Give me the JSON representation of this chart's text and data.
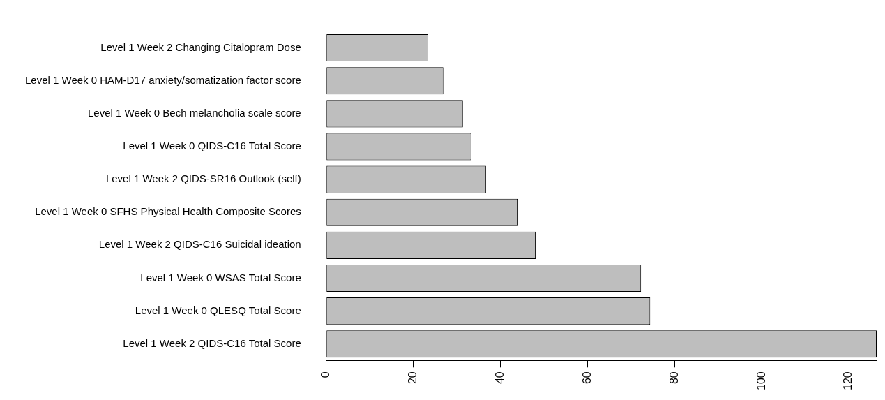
{
  "chart_data": {
    "type": "bar",
    "orientation": "horizontal",
    "categories": [
      "Level 1 Week 2 Changing Citalopram Dose",
      "Level 1 Week 0 HAM-D17 anxiety/somatization factor score",
      "Level 1 Week 0 Bech melancholia scale score",
      "Level 1 Week 0 QIDS-C16 Total Score",
      "Level 1 Week 2 QIDS-SR16 Outlook (self)",
      "Level 1 Week 0 SFHS Physical Health Composite Scores",
      "Level 1 Week 2 QIDS-C16 Suicidal ideation",
      "Level 1 Week 0 WSAS Total Score",
      "Level 1 Week 0 QLESQ Total Score",
      "Level 1 Week 2 QIDS-C16 Total Score"
    ],
    "values": [
      23.4,
      26.9,
      31.4,
      33.3,
      36.7,
      44.1,
      48.1,
      72.3,
      74.4,
      126.4
    ],
    "color": "#bebebe",
    "xlim": [
      0,
      126.4
    ],
    "xticks": [
      0,
      20,
      40,
      60,
      80,
      100,
      120
    ],
    "grid": false,
    "legend": false
  }
}
